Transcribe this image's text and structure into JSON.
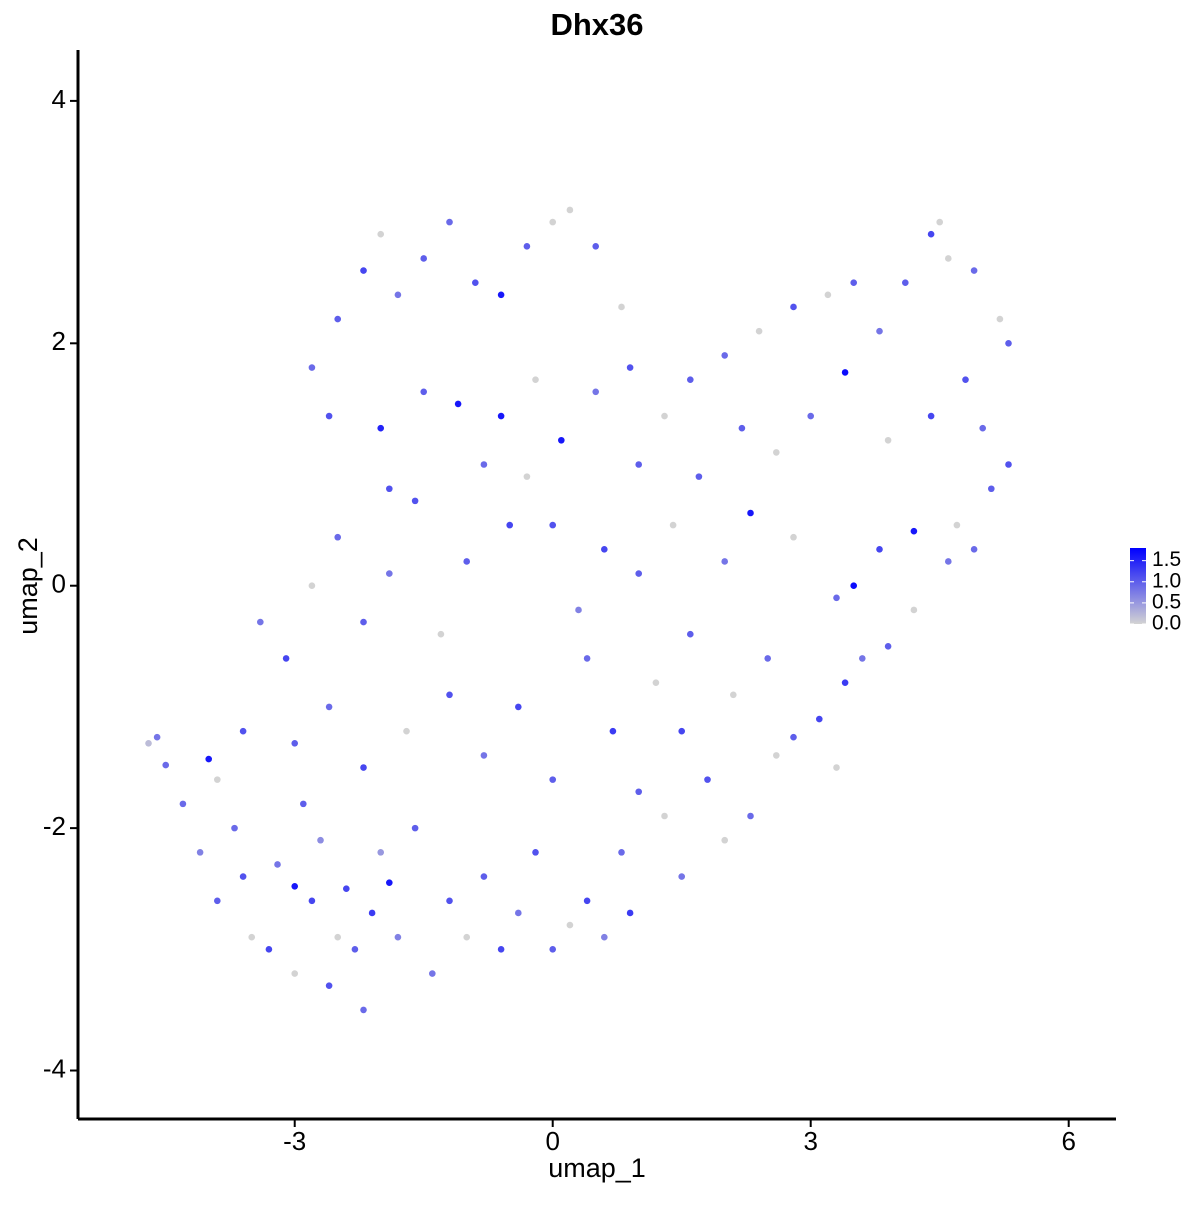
{
  "chart_data": {
    "type": "scatter",
    "title": "Dhx36",
    "x_label": "umap_1",
    "y_label": "umap_2",
    "xlim": [
      -5.52,
      6.55
    ],
    "ylim": [
      -4.4,
      4.42
    ],
    "xticks": [
      -3,
      0,
      3,
      6
    ],
    "yticks": [
      -4,
      -2,
      0,
      2,
      4
    ],
    "color_low": "#d3d3d3",
    "color_high": "#0000ff",
    "color_lim": [
      0,
      1.8
    ],
    "color_ticks": [
      {
        "value": 0,
        "label": "0.0"
      },
      0.5,
      {
        "value": 1,
        "label": "1.0"
      },
      1.5
    ],
    "x": [
      -4.6,
      -4.7,
      -4.5,
      -4.3,
      -4.0,
      -4.1,
      -3.9,
      -3.7,
      -3.6,
      -3.5,
      -3.3,
      -3.2,
      -3.0,
      -3.0,
      -2.9,
      -2.8,
      -2.7,
      -2.6,
      -2.5,
      -2.4,
      -2.3,
      -2.2,
      -2.1,
      -2.0,
      -1.9,
      -1.8,
      -1.6,
      -1.4,
      -1.2,
      -1.0,
      -0.8,
      -0.6,
      -0.4,
      -0.2,
      0.0,
      0.2,
      0.4,
      0.6,
      0.9,
      0.8,
      1.0,
      1.3,
      1.5,
      1.8,
      2.0,
      2.3,
      2.6,
      2.8,
      3.1,
      3.4,
      3.3,
      3.6,
      3.9,
      4.2,
      4.6,
      4.9,
      5.1,
      5.3,
      4.7,
      4.2,
      3.5,
      3.8,
      3.3,
      2.8,
      2.3,
      2.0,
      1.7,
      1.4,
      1.0,
      0.6,
      0.3,
      0.0,
      -0.3,
      -0.5,
      -0.8,
      -1.0,
      -1.3,
      -1.6,
      -1.9,
      -2.2,
      -2.5,
      -2.8,
      -3.1,
      -3.4,
      -3.6,
      -3.9,
      -3.0,
      -2.6,
      -2.2,
      -1.7,
      -1.2,
      -0.8,
      -0.4,
      0.0,
      0.4,
      0.7,
      1.2,
      1.6,
      2.1,
      2.5,
      1.5,
      -2.8,
      -2.5,
      -2.2,
      -2.0,
      -1.8,
      -1.5,
      -1.2,
      -0.9,
      -0.6,
      -0.3,
      0.0,
      0.2,
      0.5,
      0.8,
      -2.6,
      -2.0,
      -1.5,
      -1.1,
      -0.6,
      -0.2,
      0.1,
      0.5,
      0.9,
      1.3,
      1.6,
      2.0,
      2.4,
      2.8,
      3.2,
      3.5,
      3.8,
      4.1,
      4.4,
      4.6,
      4.5,
      4.9,
      5.2,
      5.3,
      4.8,
      4.4,
      3.9,
      3.4,
      3.0,
      2.6,
      2.2,
      5.0,
      1.0,
      -1.9
    ],
    "y": [
      -1.25,
      -1.3,
      -1.48,
      -1.8,
      -1.43,
      -2.2,
      -2.6,
      -2.0,
      -2.4,
      -2.9,
      -3.0,
      -2.3,
      -2.48,
      -3.2,
      -1.8,
      -2.6,
      -2.1,
      -3.3,
      -2.9,
      -2.5,
      -3.0,
      -3.5,
      -2.7,
      -2.2,
      -2.45,
      -2.9,
      -2.0,
      -3.2,
      -2.6,
      -2.9,
      -2.4,
      -3.0,
      -2.7,
      -2.2,
      -3.0,
      -2.8,
      -2.6,
      -2.9,
      -2.7,
      -2.2,
      -1.7,
      -1.9,
      -2.4,
      -1.6,
      -2.1,
      -1.9,
      -1.4,
      -1.25,
      -1.1,
      -0.8,
      -1.5,
      -0.6,
      -0.5,
      -0.2,
      0.2,
      0.3,
      0.8,
      1.0,
      0.5,
      0.45,
      0.0,
      0.3,
      -0.1,
      0.4,
      0.6,
      0.2,
      0.9,
      0.5,
      0.1,
      0.3,
      -0.2,
      0.5,
      0.9,
      0.5,
      1.0,
      0.2,
      -0.4,
      0.7,
      0.1,
      -0.3,
      0.4,
      0.0,
      -0.6,
      -0.3,
      -1.2,
      -1.6,
      -1.3,
      -1.0,
      -1.5,
      -1.2,
      -0.9,
      -1.4,
      -1.0,
      -1.6,
      -0.6,
      -1.2,
      -0.8,
      -0.4,
      -0.9,
      -0.6,
      -1.2,
      1.8,
      2.2,
      2.6,
      2.9,
      2.4,
      2.7,
      3.0,
      2.5,
      2.4,
      2.8,
      3.0,
      3.1,
      2.8,
      2.3,
      1.4,
      1.3,
      1.6,
      1.5,
      1.4,
      1.7,
      1.2,
      1.6,
      1.8,
      1.4,
      1.7,
      1.9,
      2.1,
      2.3,
      2.4,
      2.5,
      2.1,
      2.5,
      2.9,
      2.7,
      3.0,
      2.6,
      2.2,
      2.0,
      1.7,
      1.4,
      1.2,
      1.76,
      1.4,
      1.1,
      1.3,
      1.3,
      1.0,
      0.8
    ],
    "values": [
      0.8,
      0.2,
      0.9,
      0.9,
      1.6,
      0.7,
      1.0,
      0.9,
      1.1,
      0.0,
      1.2,
      0.8,
      1.6,
      0.0,
      1.0,
      1.2,
      0.6,
      1.1,
      0.0,
      1.2,
      1.0,
      0.9,
      1.3,
      0.5,
      1.6,
      0.7,
      1.0,
      0.8,
      1.1,
      0.0,
      1.0,
      1.2,
      0.8,
      1.1,
      1.0,
      0.0,
      1.2,
      0.7,
      1.3,
      0.9,
      1.0,
      0.0,
      0.8,
      1.1,
      0.0,
      0.9,
      0.0,
      1.0,
      1.2,
      1.3,
      0.0,
      0.8,
      1.0,
      0.0,
      0.8,
      0.9,
      1.0,
      1.1,
      0.0,
      1.6,
      1.7,
      1.2,
      0.9,
      0.0,
      1.6,
      0.8,
      1.0,
      0.0,
      1.0,
      1.2,
      0.7,
      1.1,
      0.0,
      1.2,
      0.9,
      1.0,
      0.0,
      1.1,
      0.8,
      1.0,
      0.9,
      0.0,
      1.2,
      0.8,
      1.1,
      0.0,
      1.0,
      0.9,
      1.2,
      0.0,
      1.1,
      0.8,
      1.2,
      1.0,
      0.9,
      1.3,
      0.0,
      1.0,
      0.0,
      0.9,
      1.2,
      0.9,
      1.0,
      1.2,
      0.0,
      0.8,
      1.0,
      0.9,
      1.1,
      1.6,
      1.0,
      0.0,
      0.0,
      1.0,
      0.0,
      1.1,
      1.5,
      1.0,
      1.6,
      1.6,
      0.0,
      1.6,
      0.8,
      1.1,
      0.0,
      1.0,
      0.9,
      0.0,
      1.1,
      0.0,
      1.0,
      0.8,
      1.0,
      1.2,
      0.0,
      0.0,
      0.9,
      0.0,
      1.0,
      1.1,
      1.2,
      0.0,
      1.7,
      0.9,
      0.0,
      1.0,
      0.9,
      1.0,
      1.1
    ]
  }
}
